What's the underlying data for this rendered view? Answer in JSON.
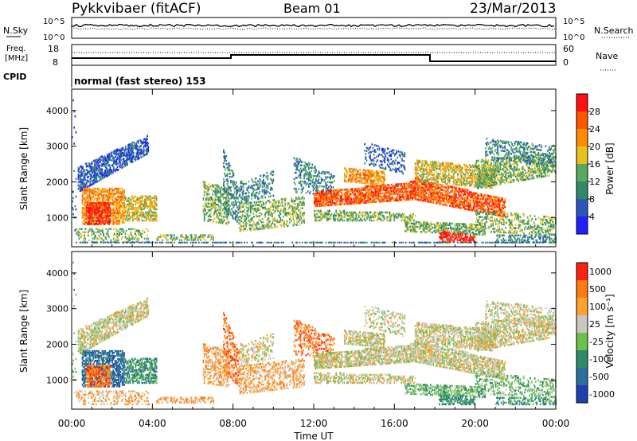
{
  "header": {
    "station": "Pykkvibaer (fitACF)",
    "beam": "Beam 01",
    "date": "23/Mar/2013"
  },
  "noise_panel": {
    "left_label": "N.Sky",
    "left_ticks": [
      "10^5",
      "10^0"
    ],
    "right_ticks": [
      "10^5",
      "10^0"
    ],
    "right_label": "N.Search"
  },
  "freq_panel": {
    "left_label_line1": "Freq.",
    "left_label_line2": "[MHz]",
    "left_ticks": [
      "18",
      "8"
    ],
    "right_ticks": [
      "60",
      "0"
    ],
    "right_label": "Nave",
    "cpid_label": "CPID",
    "cpid_text": "normal (fast stereo) 153"
  },
  "chart_data": [
    {
      "type": "heatmap",
      "ylabel": "Slant Range [km]",
      "y_ticks": [
        "1000",
        "2000",
        "3000",
        "4000"
      ],
      "ylim": [
        180,
        4600
      ],
      "x_ticks": [
        "00:00",
        "04:00",
        "08:00",
        "12:00",
        "16:00",
        "20:00",
        "00:00"
      ],
      "colorbar": {
        "label": "Power [dB]",
        "ticks": [
          "4",
          "8",
          "12",
          "16",
          "20",
          "24",
          "28"
        ],
        "colors": [
          "#2020ff",
          "#2b55b8",
          "#2e8b68",
          "#58a860",
          "#e8c020",
          "#ff8c00",
          "#ff5500",
          "#ff1010"
        ]
      }
    },
    {
      "type": "heatmap",
      "ylabel": "Slant Range [km]",
      "y_ticks": [
        "1000",
        "2000",
        "3000",
        "4000"
      ],
      "ylim": [
        180,
        4600
      ],
      "x_ticks": [
        "00:00",
        "04:00",
        "08:00",
        "12:00",
        "16:00",
        "20:00",
        "00:00"
      ],
      "xlabel": "Time UT",
      "colorbar": {
        "label": "Velocity [m s⁻¹]",
        "ticks": [
          "1000",
          "500",
          "100",
          "25",
          "-25",
          "-100",
          "-500",
          "-1000"
        ],
        "colors": [
          "#2040b0",
          "#2a6fa0",
          "#2e8b6a",
          "#6ac24a",
          "#c8c8c0",
          "#ffa030",
          "#ff7a10",
          "#ff2010"
        ]
      }
    }
  ]
}
